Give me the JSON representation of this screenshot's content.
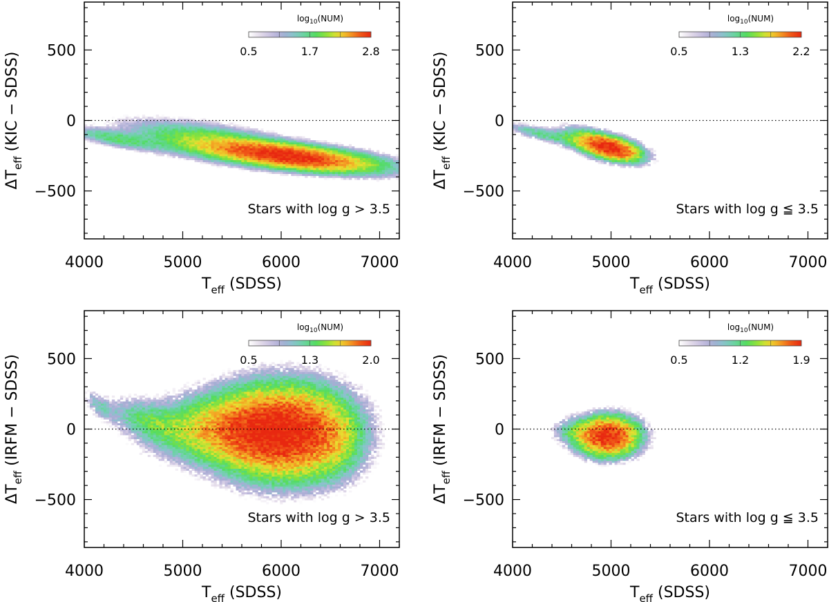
{
  "colormap": [
    "#ffffff",
    "#e4dcea",
    "#c8c0e0",
    "#a8acd4",
    "#88c4cc",
    "#6ad4a0",
    "#52dc62",
    "#8ee238",
    "#e8e030",
    "#f4a424",
    "#f05a18",
    "#e82810"
  ],
  "chart_data": [
    {
      "type": "heatmap",
      "xlabel": "T",
      "xlabel_sub": "eff",
      "xlabel_rest": " (SDSS)",
      "ylabel": "ΔT",
      "ylabel_sub": "eff",
      "ylabel_rest": " (KIC − SDSS)",
      "xlim": [
        4000,
        7200
      ],
      "ylim": [
        -840,
        840
      ],
      "xticks": [
        4000,
        5000,
        6000,
        7000
      ],
      "yticks": [
        -500,
        0,
        500
      ],
      "reference_line": {
        "y": 0,
        "style": "dotted"
      },
      "annotation": "Stars with log g > 3.5",
      "colorbar": {
        "label": "log",
        "label_sub": "10",
        "label_rest": "(NUM)",
        "range": [
          0.5,
          2.8
        ],
        "ticks": [
          "0.5",
          "1.7",
          "2.8"
        ],
        "placement": "top-right"
      },
      "density_components": [
        {
          "teff": 6050,
          "dteff": -250,
          "s_teff": 420,
          "s_dteff": 42,
          "slope": -0.08,
          "peak": 2.8
        },
        {
          "teff": 5350,
          "dteff": -160,
          "s_teff": 450,
          "s_dteff": 60,
          "slope": -0.1,
          "peak": 2.0
        },
        {
          "teff": 4350,
          "dteff": -130,
          "s_teff": 260,
          "s_dteff": 30,
          "slope": -0.12,
          "peak": 1.7
        },
        {
          "teff": 6750,
          "dteff": -275,
          "s_teff": 300,
          "s_dteff": 40,
          "slope": -0.1,
          "peak": 1.4
        }
      ]
    },
    {
      "type": "heatmap",
      "xlabel": "T",
      "xlabel_sub": "eff",
      "xlabel_rest": " (SDSS)",
      "ylabel": "ΔT",
      "ylabel_sub": "eff",
      "ylabel_rest": " (KIC − SDSS)",
      "xlim": [
        4000,
        7200
      ],
      "ylim": [
        -840,
        840
      ],
      "xticks": [
        4000,
        5000,
        6000,
        7000
      ],
      "yticks": [
        -500,
        0,
        500
      ],
      "reference_line": {
        "y": 0,
        "style": "dotted"
      },
      "annotation": "Stars with log g ≦ 3.5",
      "colorbar": {
        "label": "log",
        "label_sub": "10",
        "label_rest": "(NUM)",
        "range": [
          0.5,
          2.2
        ],
        "ticks": [
          "0.5",
          "1.3",
          "2.2"
        ],
        "placement": "top-right"
      },
      "density_components": [
        {
          "teff": 5000,
          "dteff": -195,
          "s_teff": 170,
          "s_dteff": 45,
          "slope": -0.15,
          "peak": 2.2
        },
        {
          "teff": 4750,
          "dteff": -140,
          "s_teff": 170,
          "s_dteff": 50,
          "slope": -0.15,
          "peak": 1.5
        },
        {
          "teff": 4300,
          "dteff": -95,
          "s_teff": 220,
          "s_dteff": 28,
          "slope": -0.15,
          "peak": 1.3
        }
      ]
    },
    {
      "type": "heatmap",
      "xlabel": "T",
      "xlabel_sub": "eff",
      "xlabel_rest": " (SDSS)",
      "ylabel": "ΔT",
      "ylabel_sub": "eff",
      "ylabel_rest": " (IRFM − SDSS)",
      "xlim": [
        4000,
        7200
      ],
      "ylim": [
        -840,
        840
      ],
      "xticks": [
        4000,
        5000,
        6000,
        7000
      ],
      "yticks": [
        -500,
        0,
        500
      ],
      "reference_line": {
        "y": 0,
        "style": "dotted"
      },
      "annotation": "Stars with log g > 3.5",
      "colorbar": {
        "label": "log",
        "label_sub": "10",
        "label_rest": "(NUM)",
        "range": [
          0.5,
          2.0
        ],
        "ticks": [
          "0.5",
          "1.3",
          "2.0"
        ],
        "placement": "top-right"
      },
      "density_components": [
        {
          "teff": 6000,
          "dteff": -20,
          "s_teff": 380,
          "s_dteff": 190,
          "slope": 0,
          "peak": 2.0
        },
        {
          "teff": 5400,
          "dteff": 0,
          "s_teff": 420,
          "s_dteff": 140,
          "slope": 0,
          "peak": 1.6
        },
        {
          "teff": 4650,
          "dteff": 60,
          "s_teff": 250,
          "s_dteff": 80,
          "slope": -0.2,
          "peak": 1.2
        },
        {
          "teff": 4150,
          "dteff": 170,
          "s_teff": 100,
          "s_dteff": 50,
          "slope": -0.4,
          "peak": 1.0
        },
        {
          "teff": 6500,
          "dteff": -60,
          "s_teff": 220,
          "s_dteff": 180,
          "slope": 0,
          "peak": 1.3
        }
      ]
    },
    {
      "type": "heatmap",
      "xlabel": "T",
      "xlabel_sub": "eff",
      "xlabel_rest": " (SDSS)",
      "ylabel": "ΔT",
      "ylabel_sub": "eff",
      "ylabel_rest": " (IRFM − SDSS)",
      "xlim": [
        4000,
        7200
      ],
      "ylim": [
        -840,
        840
      ],
      "xticks": [
        4000,
        5000,
        6000,
        7000
      ],
      "yticks": [
        -500,
        0,
        500
      ],
      "reference_line": {
        "y": 0,
        "style": "dotted"
      },
      "annotation": "Stars with log g ≦ 3.5",
      "colorbar": {
        "label": "log",
        "label_sub": "10",
        "label_rest": "(NUM)",
        "range": [
          0.5,
          1.9
        ],
        "ticks": [
          "0.5",
          "1.2",
          "1.9"
        ],
        "placement": "top-right"
      },
      "density_components": [
        {
          "teff": 4970,
          "dteff": -50,
          "s_teff": 190,
          "s_dteff": 85,
          "slope": 0,
          "peak": 1.9
        },
        {
          "teff": 4600,
          "dteff": -10,
          "s_teff": 130,
          "s_dteff": 60,
          "slope": 0,
          "peak": 1.0
        }
      ]
    }
  ]
}
